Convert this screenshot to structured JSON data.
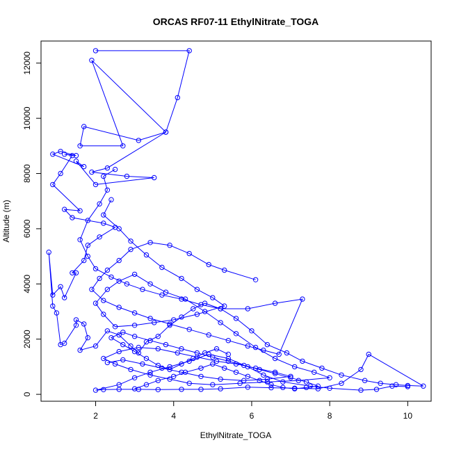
{
  "chart_data": {
    "type": "line",
    "title": "ORCAS RF07-11 EthylNitrate_TOGA",
    "xlabel": "EthylNitrate_TOGA",
    "ylabel": "Altitude (m)",
    "xlim": [
      0.6,
      10.6
    ],
    "ylim": [
      -250,
      12800
    ],
    "x_ticks": [
      2,
      4,
      6,
      8,
      10
    ],
    "y_ticks": [
      0,
      2000,
      4000,
      6000,
      8000,
      10000,
      12000
    ],
    "grid": false,
    "legend": "none",
    "marker": "open-circle",
    "series": [
      {
        "color": "#0000ff",
        "points": [
          [
            2.0,
            12450
          ],
          [
            4.4,
            12450
          ],
          [
            4.1,
            10750
          ],
          [
            3.8,
            9500
          ],
          [
            1.9,
            12100
          ],
          [
            2.7,
            9000
          ],
          [
            1.6,
            9000
          ],
          [
            1.7,
            9700
          ],
          [
            3.1,
            9200
          ],
          [
            3.8,
            9500
          ],
          [
            2.3,
            8200
          ],
          [
            1.9,
            8050
          ],
          [
            2.8,
            7900
          ],
          [
            3.5,
            7850
          ],
          [
            2.0,
            7600
          ],
          [
            1.5,
            8450
          ],
          [
            1.7,
            8250
          ],
          [
            0.9,
            8700
          ],
          [
            1.1,
            8800
          ],
          [
            1.5,
            8650
          ],
          [
            1.2,
            8700
          ],
          [
            1.4,
            8650
          ],
          [
            1.1,
            8000
          ],
          [
            0.9,
            7600
          ],
          [
            1.6,
            6650
          ],
          [
            1.2,
            6700
          ],
          [
            1.4,
            6400
          ],
          [
            2.2,
            6200
          ],
          [
            2.5,
            6050
          ],
          [
            2.1,
            5700
          ],
          [
            1.8,
            5400
          ],
          [
            1.7,
            4850
          ],
          [
            1.4,
            4400
          ],
          [
            1.5,
            4400
          ],
          [
            1.2,
            3500
          ],
          [
            1.1,
            3900
          ],
          [
            0.9,
            3600
          ],
          [
            0.8,
            5150
          ],
          [
            0.9,
            3200
          ],
          [
            1.0,
            2950
          ],
          [
            1.1,
            1800
          ],
          [
            1.2,
            1850
          ],
          [
            1.5,
            2500
          ],
          [
            1.5,
            2700
          ],
          [
            1.7,
            2550
          ],
          [
            1.8,
            2050
          ],
          [
            1.6,
            1600
          ],
          [
            2.0,
            1750
          ],
          [
            2.3,
            2300
          ],
          [
            2.6,
            2150
          ],
          [
            2.9,
            1750
          ],
          [
            3.1,
            1500
          ],
          [
            3.3,
            1900
          ],
          [
            3.6,
            2100
          ],
          [
            3.9,
            2500
          ],
          [
            4.2,
            2800
          ],
          [
            4.5,
            3100
          ],
          [
            4.8,
            3300
          ],
          [
            5.2,
            3100
          ],
          [
            5.6,
            2750
          ],
          [
            6.0,
            2300
          ],
          [
            6.4,
            1800
          ],
          [
            6.9,
            1500
          ],
          [
            7.3,
            1200
          ],
          [
            7.8,
            950
          ],
          [
            8.3,
            700
          ],
          [
            8.9,
            500
          ],
          [
            9.3,
            400
          ],
          [
            9.7,
            350
          ],
          [
            10.0,
            320
          ],
          [
            10.4,
            300
          ],
          [
            9.0,
            1450
          ],
          [
            8.8,
            900
          ],
          [
            8.3,
            400
          ],
          [
            7.7,
            200
          ],
          [
            7.1,
            220
          ],
          [
            6.5,
            240
          ],
          [
            5.9,
            260
          ],
          [
            5.2,
            200
          ],
          [
            4.7,
            180
          ],
          [
            4.2,
            180
          ],
          [
            3.6,
            170
          ],
          [
            3.1,
            180
          ],
          [
            2.6,
            180
          ],
          [
            2.2,
            170
          ],
          [
            2.0,
            150
          ],
          [
            2.6,
            350
          ],
          [
            3.0,
            600
          ],
          [
            3.4,
            800
          ],
          [
            3.9,
            1000
          ],
          [
            4.4,
            1200
          ],
          [
            4.9,
            1450
          ],
          [
            5.4,
            1300
          ],
          [
            5.9,
            1000
          ],
          [
            6.3,
            700
          ],
          [
            6.8,
            450
          ],
          [
            7.5,
            300
          ],
          [
            8.0,
            220
          ],
          [
            8.8,
            150
          ],
          [
            9.2,
            180
          ],
          [
            9.6,
            300
          ],
          [
            10.0,
            280
          ]
        ]
      },
      {
        "color": "#0000ff",
        "points": [
          [
            2.4,
            7050
          ],
          [
            2.2,
            6500
          ],
          [
            2.6,
            6000
          ],
          [
            2.9,
            5550
          ],
          [
            3.3,
            5050
          ],
          [
            3.7,
            4600
          ],
          [
            4.2,
            4200
          ],
          [
            4.6,
            3800
          ],
          [
            5.0,
            3500
          ],
          [
            5.3,
            3200
          ],
          [
            4.6,
            2900
          ],
          [
            4.0,
            2700
          ],
          [
            3.5,
            2600
          ],
          [
            3.0,
            2500
          ],
          [
            2.5,
            2450
          ],
          [
            2.2,
            2900
          ],
          [
            2.0,
            3300
          ],
          [
            2.3,
            3800
          ],
          [
            2.6,
            4100
          ],
          [
            3.0,
            4350
          ],
          [
            3.4,
            4000
          ],
          [
            3.8,
            3700
          ],
          [
            4.3,
            3450
          ],
          [
            4.8,
            3000
          ],
          [
            5.2,
            2600
          ],
          [
            5.6,
            2200
          ],
          [
            6.1,
            1700
          ],
          [
            6.6,
            1300
          ],
          [
            7.1,
            1000
          ],
          [
            7.6,
            800
          ],
          [
            8.0,
            600
          ],
          [
            7.2,
            500
          ],
          [
            6.4,
            450
          ],
          [
            5.7,
            400
          ],
          [
            5.0,
            350
          ],
          [
            4.4,
            400
          ],
          [
            3.9,
            550
          ],
          [
            3.4,
            700
          ],
          [
            2.9,
            900
          ],
          [
            2.5,
            1100
          ],
          [
            2.2,
            1300
          ],
          [
            2.6,
            1550
          ],
          [
            3.1,
            1700
          ],
          [
            3.6,
            1650
          ],
          [
            4.1,
            1500
          ],
          [
            4.6,
            1350
          ],
          [
            5.1,
            1200
          ],
          [
            5.6,
            1100
          ],
          [
            6.1,
            950
          ],
          [
            6.6,
            800
          ],
          [
            7.0,
            650
          ],
          [
            6.4,
            550
          ],
          [
            5.8,
            500
          ],
          [
            5.2,
            550
          ],
          [
            4.7,
            650
          ],
          [
            4.2,
            800
          ],
          [
            3.7,
            950
          ],
          [
            3.2,
            1100
          ],
          [
            2.7,
            1250
          ],
          [
            2.3,
            1150
          ]
        ]
      },
      {
        "color": "#0000ff",
        "points": [
          [
            6.1,
            4150
          ],
          [
            5.3,
            4500
          ],
          [
            4.9,
            4700
          ],
          [
            4.4,
            5100
          ],
          [
            3.9,
            5400
          ],
          [
            3.4,
            5500
          ],
          [
            2.9,
            5250
          ],
          [
            2.6,
            4850
          ],
          [
            2.3,
            4500
          ],
          [
            2.1,
            4200
          ],
          [
            1.9,
            3800
          ],
          [
            2.2,
            3400
          ],
          [
            2.6,
            3150
          ],
          [
            3.0,
            2950
          ],
          [
            3.4,
            2750
          ],
          [
            3.9,
            2550
          ],
          [
            4.4,
            2350
          ],
          [
            4.9,
            2150
          ],
          [
            5.4,
            1950
          ],
          [
            5.9,
            1750
          ],
          [
            6.3,
            1600
          ],
          [
            6.7,
            1450
          ],
          [
            7.3,
            3450
          ],
          [
            6.6,
            3300
          ],
          [
            5.9,
            3100
          ],
          [
            5.2,
            3100
          ],
          [
            4.7,
            3250
          ],
          [
            4.2,
            3450
          ],
          [
            3.7,
            3600
          ],
          [
            3.2,
            3800
          ],
          [
            2.8,
            4000
          ],
          [
            2.4,
            4250
          ],
          [
            2.0,
            4550
          ],
          [
            1.8,
            5000
          ],
          [
            1.6,
            5600
          ],
          [
            1.8,
            6300
          ],
          [
            2.1,
            6900
          ],
          [
            2.3,
            7400
          ],
          [
            2.2,
            7900
          ],
          [
            2.5,
            8150
          ]
        ]
      },
      {
        "color": "#0000ff",
        "points": [
          [
            3.0,
            200
          ],
          [
            3.3,
            350
          ],
          [
            3.6,
            500
          ],
          [
            4.0,
            650
          ],
          [
            4.3,
            800
          ],
          [
            4.7,
            950
          ],
          [
            5.0,
            1100
          ],
          [
            5.3,
            950
          ],
          [
            5.6,
            800
          ],
          [
            5.9,
            650
          ],
          [
            6.2,
            500
          ],
          [
            6.5,
            350
          ],
          [
            6.8,
            250
          ],
          [
            7.1,
            200
          ],
          [
            7.4,
            250
          ],
          [
            7.7,
            300
          ],
          [
            7.4,
            450
          ],
          [
            7.0,
            600
          ],
          [
            6.6,
            750
          ],
          [
            6.2,
            900
          ],
          [
            5.8,
            1050
          ],
          [
            5.4,
            1200
          ],
          [
            5.0,
            1350
          ],
          [
            4.6,
            1500
          ],
          [
            4.2,
            1650
          ],
          [
            3.8,
            1800
          ],
          [
            3.4,
            1950
          ],
          [
            3.0,
            2100
          ],
          [
            2.7,
            2250
          ],
          [
            2.4,
            2050
          ],
          [
            2.7,
            1800
          ],
          [
            3.0,
            1550
          ],
          [
            3.3,
            1300
          ],
          [
            3.6,
            1050
          ],
          [
            3.9,
            900
          ],
          [
            4.2,
            1100
          ],
          [
            4.5,
            1300
          ],
          [
            4.8,
            1500
          ],
          [
            5.1,
            1650
          ],
          [
            5.4,
            1450
          ]
        ]
      }
    ]
  }
}
